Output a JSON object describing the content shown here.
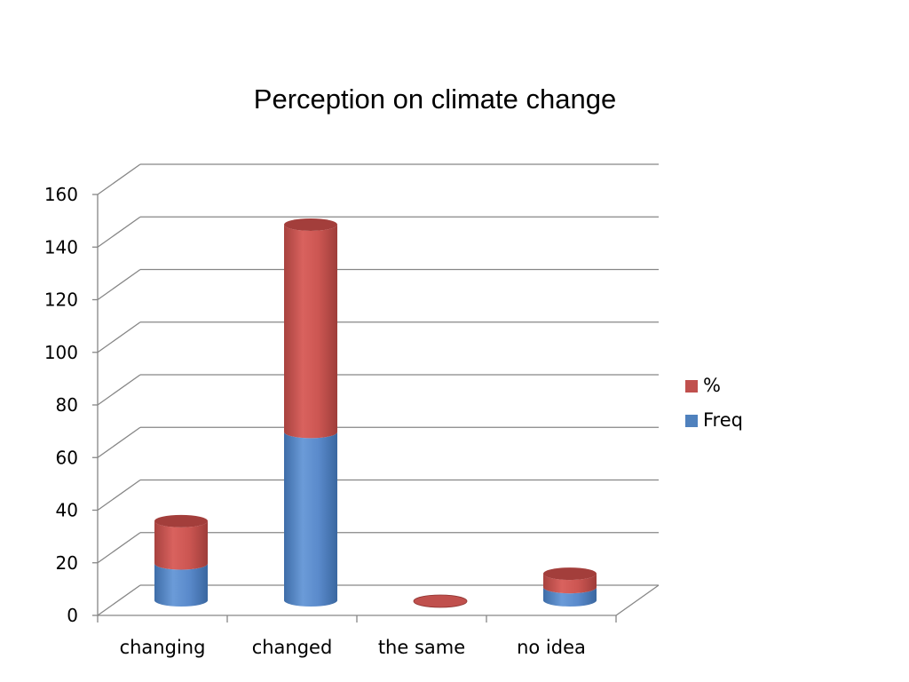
{
  "chart_data": {
    "type": "bar",
    "stacked": true,
    "title": "Perception on climate change",
    "categories": [
      "changing",
      "changed",
      "the same",
      "no idea"
    ],
    "series": [
      {
        "name": "Freq",
        "values": [
          14,
          64,
          0,
          5
        ],
        "color": "#4F81BD"
      },
      {
        "name": "%",
        "values": [
          16.1,
          78.8,
          0,
          5.1
        ],
        "color": "#C0504D"
      }
    ],
    "ylim": [
      0,
      160
    ],
    "yticks": [
      0,
      20,
      40,
      60,
      80,
      100,
      120,
      140,
      160
    ],
    "grid": true,
    "legend_position": "right"
  }
}
